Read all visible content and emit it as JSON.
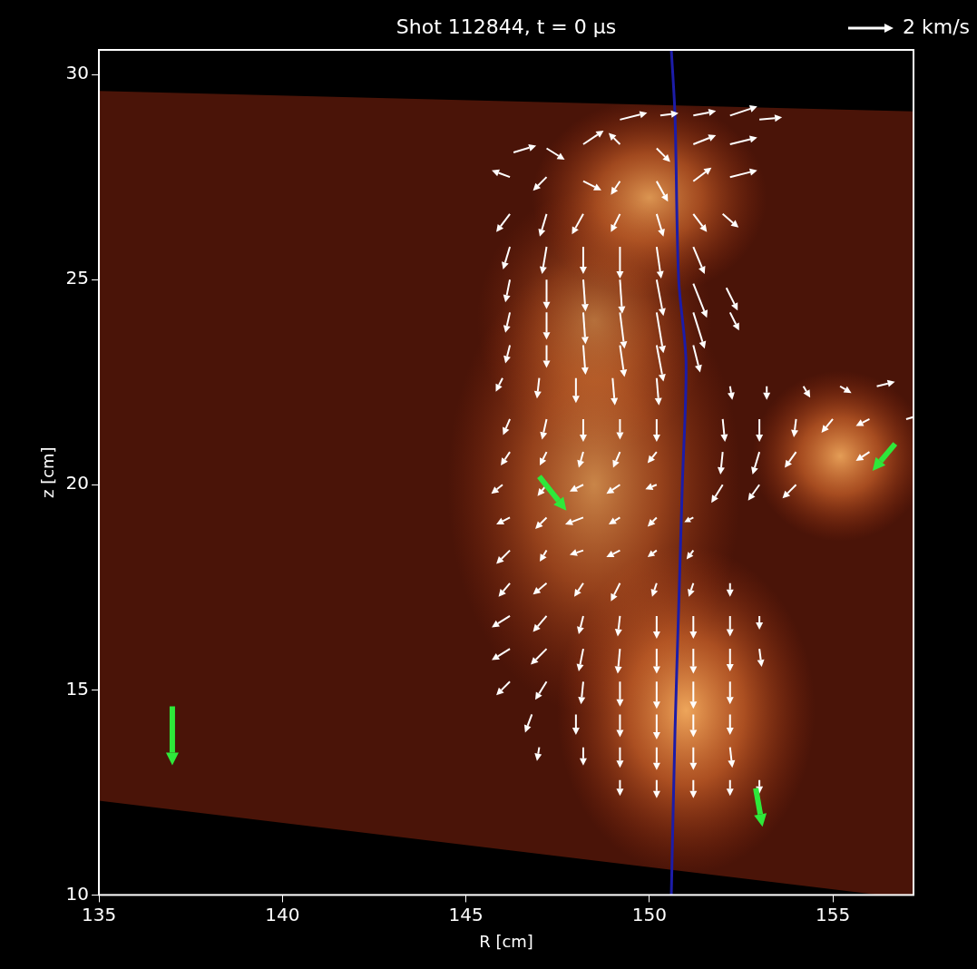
{
  "chart_data": {
    "type": "quiver",
    "title": "Shot 112844, t = 0 µs",
    "xlabel": "R [cm]",
    "ylabel": "z [cm]",
    "xlim": [
      135,
      157.2
    ],
    "xticks": [
      135,
      140,
      145,
      150,
      155
    ],
    "ylim": [
      10,
      30.6
    ],
    "yticks": [
      10,
      15,
      20,
      25,
      30
    ],
    "grid": false,
    "reference_arrow": {
      "value": 2,
      "label": "2 km/s"
    },
    "intensity": {
      "view_polygon": [
        [
          135,
          29.6
        ],
        [
          157.2,
          29.1
        ],
        [
          157.2,
          9.9
        ],
        [
          135,
          12.3
        ]
      ],
      "blobs": [
        [
          150.0,
          27.0,
          2.0,
          1.5,
          0.8
        ],
        [
          148.5,
          20.0,
          2.5,
          3.5,
          0.7
        ],
        [
          151.0,
          14.5,
          2.2,
          2.5,
          0.9
        ],
        [
          155.2,
          20.7,
          1.5,
          1.3,
          0.85
        ],
        [
          148.5,
          24.0,
          2.0,
          2.0,
          0.5
        ]
      ]
    },
    "separatrix": {
      "color": "#1c1ca8",
      "x": [
        150.6,
        150.7,
        150.8,
        151.0,
        150.9,
        150.8,
        150.7,
        150.6
      ],
      "y": [
        30.6,
        29.0,
        25.0,
        23.0,
        20.0,
        17.0,
        14.0,
        10.0
      ]
    },
    "vectors": {
      "color": "#ffffff",
      "values": [
        [
          149.2,
          28.9,
          1.2,
          0.3
        ],
        [
          150.3,
          29.0,
          0.8,
          0.1
        ],
        [
          151.2,
          29.0,
          1.0,
          0.2
        ],
        [
          152.2,
          29.0,
          1.2,
          0.4
        ],
        [
          153.0,
          28.9,
          1.0,
          0.1
        ],
        [
          146.3,
          28.1,
          1.0,
          0.3
        ],
        [
          147.2,
          28.2,
          0.8,
          -0.5
        ],
        [
          148.2,
          28.3,
          0.9,
          0.6
        ],
        [
          149.2,
          28.3,
          -0.5,
          0.5
        ],
        [
          150.2,
          28.2,
          0.6,
          -0.6
        ],
        [
          151.2,
          28.3,
          1.0,
          0.4
        ],
        [
          152.2,
          28.3,
          1.2,
          0.3
        ],
        [
          146.2,
          27.5,
          -0.8,
          0.3
        ],
        [
          147.2,
          27.5,
          -0.6,
          -0.6
        ],
        [
          148.2,
          27.4,
          0.8,
          -0.4
        ],
        [
          149.2,
          27.4,
          -0.4,
          -0.6
        ],
        [
          150.2,
          27.4,
          0.5,
          -0.9
        ],
        [
          151.2,
          27.4,
          0.8,
          0.6
        ],
        [
          152.2,
          27.5,
          1.2,
          0.3
        ],
        [
          146.2,
          26.6,
          -0.6,
          -0.8
        ],
        [
          147.2,
          26.6,
          -0.3,
          -1.0
        ],
        [
          148.2,
          26.6,
          -0.5,
          -0.9
        ],
        [
          149.2,
          26.6,
          -0.4,
          -0.8
        ],
        [
          150.2,
          26.6,
          0.3,
          -1.0
        ],
        [
          151.2,
          26.6,
          0.6,
          -0.8
        ],
        [
          152.0,
          26.6,
          0.7,
          -0.6
        ],
        [
          146.2,
          25.8,
          -0.3,
          -1.0
        ],
        [
          147.2,
          25.8,
          -0.2,
          -1.2
        ],
        [
          148.2,
          25.8,
          0.0,
          -1.2
        ],
        [
          149.2,
          25.8,
          0.0,
          -1.4
        ],
        [
          150.2,
          25.8,
          0.2,
          -1.4
        ],
        [
          151.2,
          25.8,
          0.5,
          -1.2
        ],
        [
          146.2,
          25.0,
          -0.2,
          -1.0
        ],
        [
          147.2,
          25.0,
          0.0,
          -1.3
        ],
        [
          148.2,
          25.0,
          0.1,
          -1.4
        ],
        [
          149.2,
          25.0,
          0.1,
          -1.5
        ],
        [
          150.2,
          25.0,
          0.3,
          -1.6
        ],
        [
          151.2,
          24.9,
          0.6,
          -1.5
        ],
        [
          152.1,
          24.8,
          0.5,
          -1.0
        ],
        [
          146.2,
          24.2,
          -0.2,
          -0.9
        ],
        [
          147.2,
          24.2,
          0.0,
          -1.2
        ],
        [
          148.2,
          24.2,
          0.1,
          -1.4
        ],
        [
          149.2,
          24.2,
          0.2,
          -1.6
        ],
        [
          150.2,
          24.2,
          0.3,
          -1.8
        ],
        [
          151.2,
          24.2,
          0.5,
          -1.6
        ],
        [
          152.2,
          24.2,
          0.4,
          -0.8
        ],
        [
          146.2,
          23.4,
          -0.2,
          -0.8
        ],
        [
          147.2,
          23.4,
          0.0,
          -1.0
        ],
        [
          148.2,
          23.4,
          0.1,
          -1.3
        ],
        [
          149.2,
          23.4,
          0.2,
          -1.4
        ],
        [
          150.2,
          23.4,
          0.3,
          -1.6
        ],
        [
          151.2,
          23.4,
          0.3,
          -1.2
        ],
        [
          146.0,
          22.6,
          -0.3,
          -0.6
        ],
        [
          147.0,
          22.6,
          -0.1,
          -0.9
        ],
        [
          148.0,
          22.6,
          0.0,
          -1.1
        ],
        [
          149.0,
          22.6,
          0.1,
          -1.2
        ],
        [
          150.2,
          22.6,
          0.1,
          -1.2
        ],
        [
          152.2,
          22.4,
          0.1,
          -0.6
        ],
        [
          153.2,
          22.4,
          0.0,
          -0.6
        ],
        [
          154.2,
          22.4,
          0.3,
          -0.5
        ],
        [
          155.2,
          22.4,
          0.5,
          -0.3
        ],
        [
          156.2,
          22.4,
          0.8,
          0.2
        ],
        [
          146.2,
          21.6,
          -0.3,
          -0.7
        ],
        [
          147.2,
          21.6,
          -0.2,
          -0.9
        ],
        [
          148.2,
          21.6,
          0.0,
          -1.0
        ],
        [
          149.2,
          21.6,
          0.0,
          -0.9
        ],
        [
          150.2,
          21.6,
          0.0,
          -1.0
        ],
        [
          152.0,
          21.6,
          0.1,
          -1.0
        ],
        [
          153.0,
          21.6,
          0.0,
          -1.0
        ],
        [
          154.0,
          21.6,
          -0.1,
          -0.8
        ],
        [
          155.0,
          21.6,
          -0.5,
          -0.6
        ],
        [
          156.0,
          21.6,
          -0.6,
          -0.3
        ],
        [
          157.0,
          21.6,
          0.7,
          0.2
        ],
        [
          146.2,
          20.8,
          -0.4,
          -0.6
        ],
        [
          147.2,
          20.8,
          -0.3,
          -0.6
        ],
        [
          148.2,
          20.8,
          -0.2,
          -0.7
        ],
        [
          149.2,
          20.8,
          -0.3,
          -0.7
        ],
        [
          150.2,
          20.8,
          -0.4,
          -0.5
        ],
        [
          152.0,
          20.8,
          -0.1,
          -1.0
        ],
        [
          153.0,
          20.8,
          -0.3,
          -1.0
        ],
        [
          154.0,
          20.8,
          -0.5,
          -0.7
        ],
        [
          156.0,
          20.8,
          -0.6,
          -0.4
        ],
        [
          146.0,
          20.0,
          -0.5,
          -0.4
        ],
        [
          147.2,
          20.0,
          -0.4,
          -0.5
        ],
        [
          148.2,
          20.0,
          -0.6,
          -0.3
        ],
        [
          149.2,
          20.0,
          -0.6,
          -0.4
        ],
        [
          150.2,
          20.0,
          -0.5,
          -0.2
        ],
        [
          152.0,
          20.0,
          -0.5,
          -0.8
        ],
        [
          153.0,
          20.0,
          -0.5,
          -0.7
        ],
        [
          154.0,
          20.0,
          -0.6,
          -0.6
        ],
        [
          146.2,
          19.2,
          -0.6,
          -0.3
        ],
        [
          147.2,
          19.2,
          -0.5,
          -0.5
        ],
        [
          148.2,
          19.2,
          -0.8,
          -0.3
        ],
        [
          149.2,
          19.2,
          -0.5,
          -0.3
        ],
        [
          150.2,
          19.2,
          -0.4,
          -0.4
        ],
        [
          151.2,
          19.2,
          -0.4,
          -0.2
        ],
        [
          146.2,
          18.4,
          -0.6,
          -0.6
        ],
        [
          147.2,
          18.4,
          -0.3,
          -0.5
        ],
        [
          148.2,
          18.4,
          -0.6,
          -0.2
        ],
        [
          149.2,
          18.4,
          -0.6,
          -0.3
        ],
        [
          150.2,
          18.4,
          -0.4,
          -0.3
        ],
        [
          151.2,
          18.4,
          -0.3,
          -0.4
        ],
        [
          146.2,
          17.6,
          -0.5,
          -0.6
        ],
        [
          147.2,
          17.6,
          -0.6,
          -0.5
        ],
        [
          148.2,
          17.6,
          -0.4,
          -0.6
        ],
        [
          149.2,
          17.6,
          -0.4,
          -0.8
        ],
        [
          150.2,
          17.6,
          -0.2,
          -0.6
        ],
        [
          151.2,
          17.6,
          -0.2,
          -0.6
        ],
        [
          152.2,
          17.6,
          0.0,
          -0.6
        ],
        [
          146.2,
          16.8,
          -0.8,
          -0.5
        ],
        [
          147.2,
          16.8,
          -0.6,
          -0.7
        ],
        [
          148.2,
          16.8,
          -0.2,
          -0.8
        ],
        [
          149.2,
          16.8,
          -0.1,
          -0.9
        ],
        [
          150.2,
          16.8,
          0.0,
          -1.0
        ],
        [
          151.2,
          16.8,
          0.0,
          -1.0
        ],
        [
          152.2,
          16.8,
          0.0,
          -0.9
        ],
        [
          153.0,
          16.8,
          0.0,
          -0.6
        ],
        [
          146.2,
          16.0,
          -0.8,
          -0.5
        ],
        [
          147.2,
          16.0,
          -0.7,
          -0.7
        ],
        [
          148.2,
          16.0,
          -0.2,
          -1.0
        ],
        [
          149.2,
          16.0,
          -0.1,
          -1.1
        ],
        [
          150.2,
          16.0,
          0.0,
          -1.1
        ],
        [
          151.2,
          16.0,
          0.0,
          -1.1
        ],
        [
          152.2,
          16.0,
          0.0,
          -1.0
        ],
        [
          153.0,
          16.0,
          0.1,
          -0.8
        ],
        [
          146.2,
          15.2,
          -0.6,
          -0.6
        ],
        [
          147.2,
          15.2,
          -0.5,
          -0.8
        ],
        [
          148.2,
          15.2,
          -0.1,
          -1.0
        ],
        [
          149.2,
          15.2,
          0.0,
          -1.1
        ],
        [
          150.2,
          15.2,
          0.0,
          -1.2
        ],
        [
          151.2,
          15.2,
          0.0,
          -1.2
        ],
        [
          152.2,
          15.2,
          0.0,
          -1.0
        ],
        [
          146.8,
          14.4,
          -0.3,
          -0.8
        ],
        [
          148.0,
          14.4,
          0.0,
          -0.9
        ],
        [
          149.2,
          14.4,
          0.0,
          -1.0
        ],
        [
          150.2,
          14.4,
          0.0,
          -1.1
        ],
        [
          151.2,
          14.4,
          0.0,
          -1.0
        ],
        [
          152.2,
          14.4,
          0.0,
          -0.9
        ],
        [
          147.0,
          13.6,
          -0.1,
          -0.6
        ],
        [
          148.2,
          13.6,
          0.0,
          -0.8
        ],
        [
          149.2,
          13.6,
          0.0,
          -0.9
        ],
        [
          150.2,
          13.6,
          0.0,
          -1.0
        ],
        [
          151.2,
          13.6,
          0.0,
          -1.0
        ],
        [
          152.2,
          13.6,
          0.1,
          -0.9
        ],
        [
          149.2,
          12.8,
          0.0,
          -0.7
        ],
        [
          150.2,
          12.8,
          0.0,
          -0.8
        ],
        [
          151.2,
          12.8,
          0.0,
          -0.8
        ],
        [
          152.2,
          12.8,
          0.0,
          -0.7
        ],
        [
          153.0,
          12.8,
          0.0,
          -0.6
        ]
      ]
    },
    "blob_vectors": {
      "color": "#2ee83a",
      "values": [
        [
          137.0,
          14.6,
          0.0,
          -2.6
        ],
        [
          147.0,
          20.2,
          1.2,
          -1.5
        ],
        [
          152.9,
          12.6,
          0.3,
          -1.7
        ],
        [
          156.7,
          21.0,
          -1.0,
          -1.2
        ]
      ]
    }
  }
}
